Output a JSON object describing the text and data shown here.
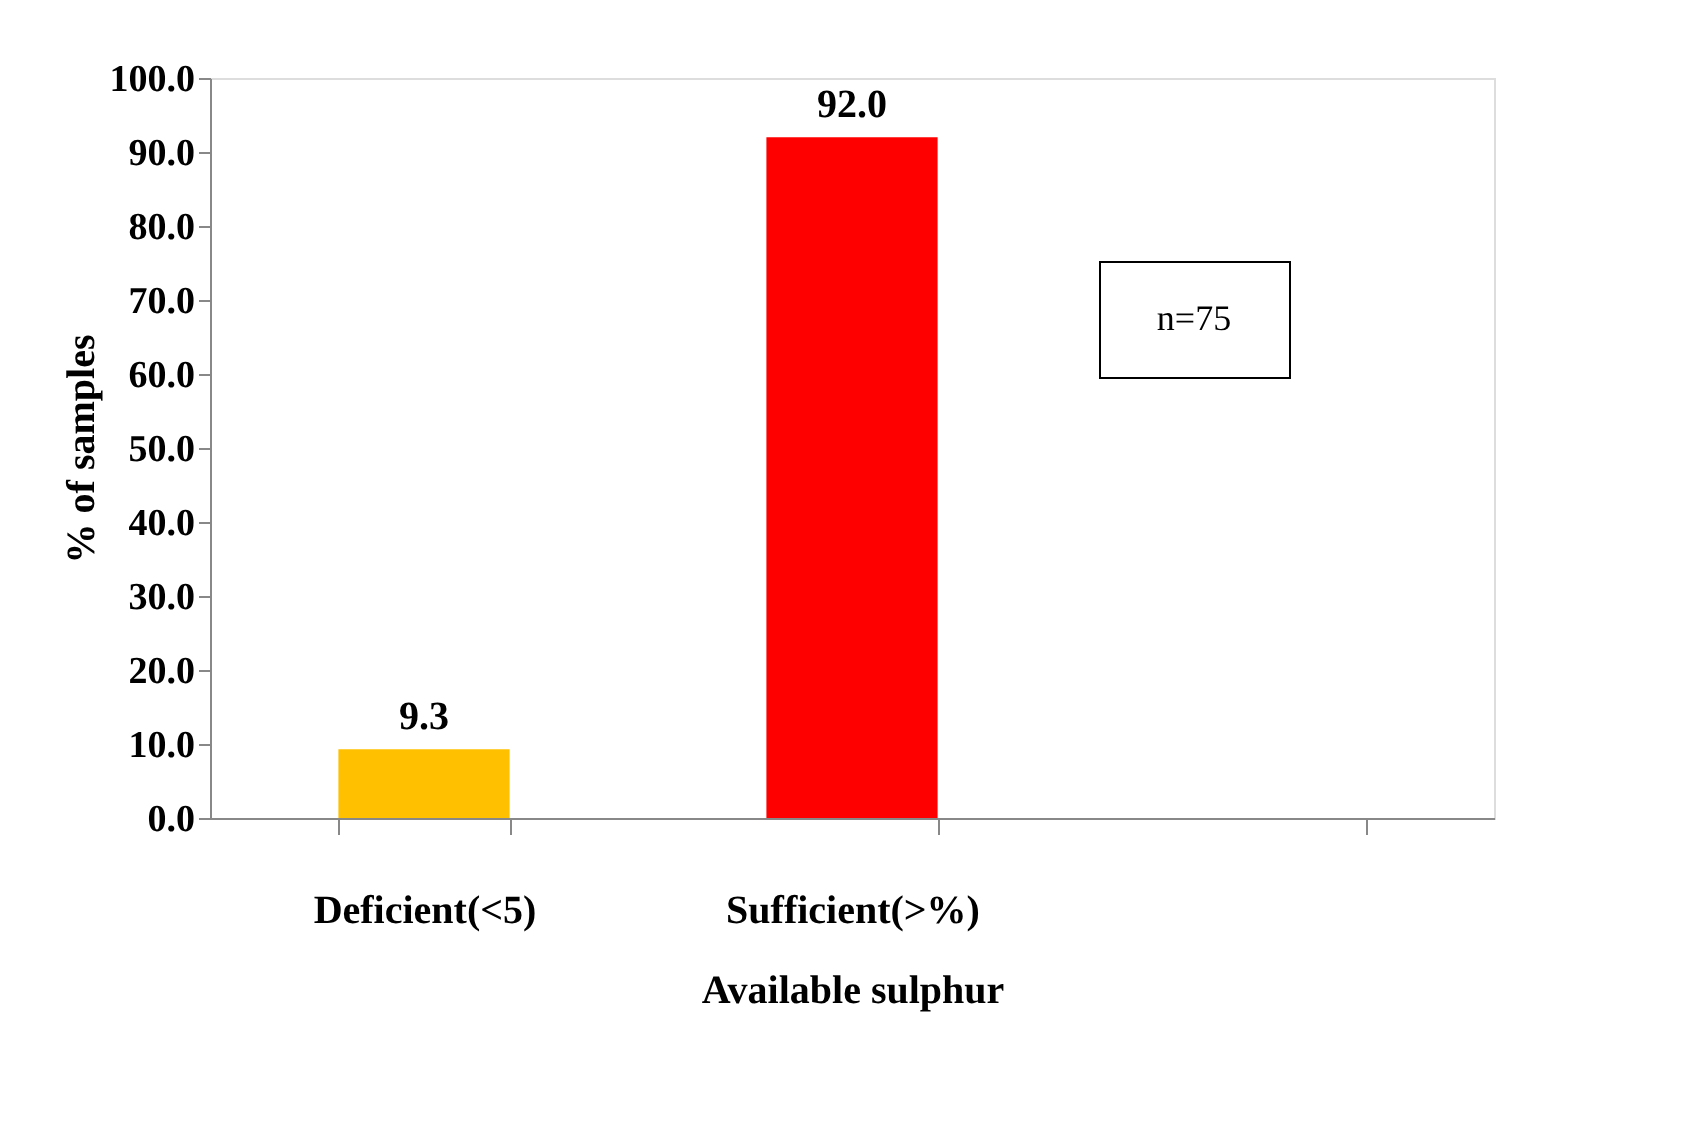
{
  "chart_data": {
    "type": "bar",
    "xlabel": "Available sulphur",
    "ylabel": "% of samples",
    "categories": [
      "Deficient(<5)",
      "Sufficient(>%)",
      null
    ],
    "values": [
      9.3,
      92.0,
      null
    ],
    "colors": [
      "#ffc000",
      "#ff0000",
      "#ff0000"
    ],
    "value_labels": [
      "9.3",
      "92.0",
      null
    ],
    "ylim": [
      0,
      100
    ],
    "yticks": [
      {
        "value": 0,
        "label": "0.0"
      },
      {
        "value": 10,
        "label": "10.0"
      },
      {
        "value": 20,
        "label": "20.0"
      },
      {
        "value": 30,
        "label": "30.0"
      },
      {
        "value": 40,
        "label": "40.0"
      },
      {
        "value": 50,
        "label": "50.0"
      },
      {
        "value": 60,
        "label": "60.0"
      },
      {
        "value": 70,
        "label": "70.0"
      },
      {
        "value": 80,
        "label": "80.0"
      },
      {
        "value": 90,
        "label": "90.0"
      },
      {
        "value": 100,
        "label": "100.0"
      }
    ],
    "annotations": [
      "n=75"
    ],
    "grid": false
  }
}
